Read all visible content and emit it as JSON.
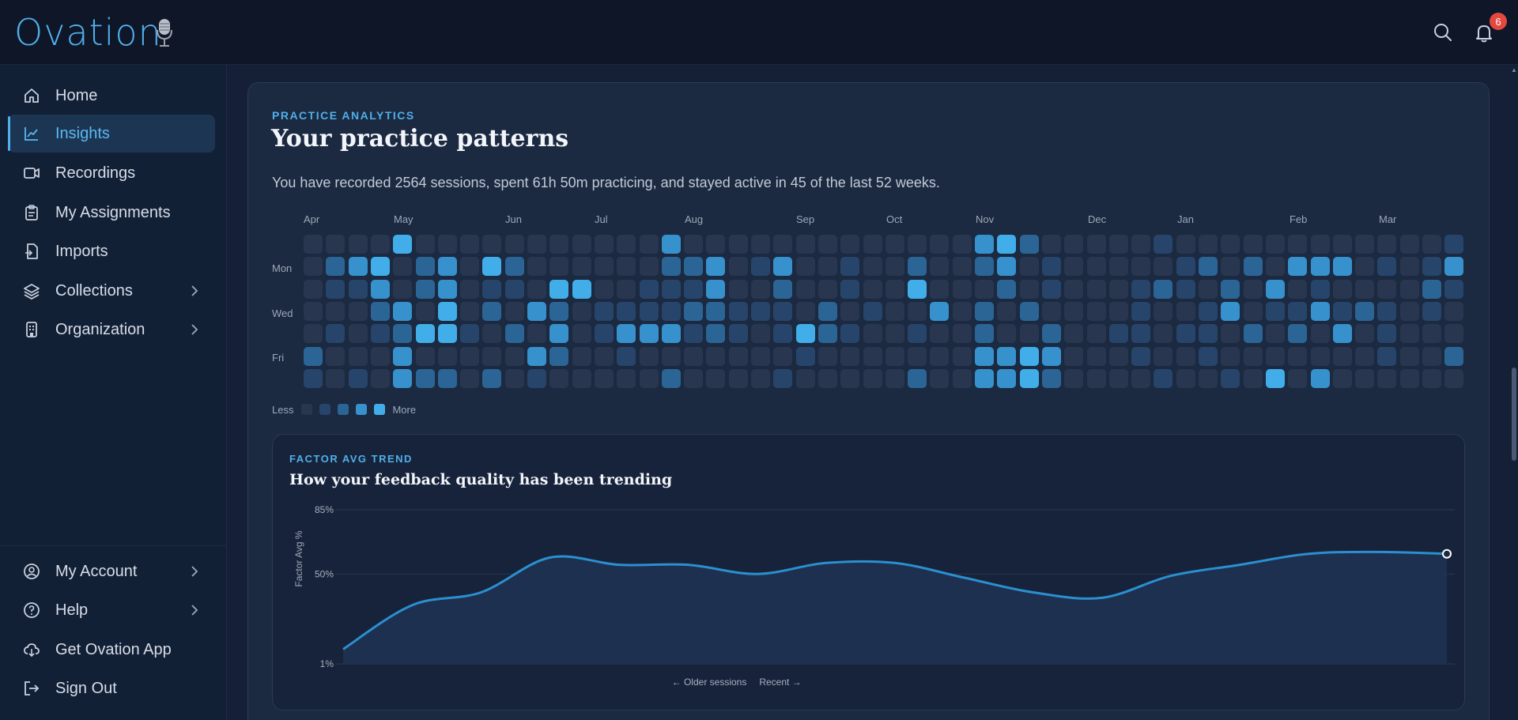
{
  "app": {
    "name": "Ovation",
    "notification_count": "6"
  },
  "sidebar": {
    "items": [
      {
        "label": "Home",
        "icon": "home-icon"
      },
      {
        "label": "Insights",
        "icon": "chart-line-icon"
      },
      {
        "label": "Recordings",
        "icon": "video-icon"
      },
      {
        "label": "My Assignments",
        "icon": "clipboard-icon"
      },
      {
        "label": "Imports",
        "icon": "file-import-icon"
      },
      {
        "label": "Collections",
        "icon": "layers-icon"
      },
      {
        "label": "Organization",
        "icon": "building-icon"
      }
    ],
    "bottom": [
      {
        "label": "My Account",
        "icon": "user-circle-icon"
      },
      {
        "label": "Help",
        "icon": "help-circle-icon"
      },
      {
        "label": "Get Ovation App",
        "icon": "cloud-download-icon"
      },
      {
        "label": "Sign Out",
        "icon": "sign-out-icon"
      }
    ]
  },
  "main": {
    "eyebrow": "PRACTICE ANALYTICS",
    "title": "Your practice patterns",
    "summary": "You have recorded 2564 sessions, spent 61h 50m practicing, and stayed active in 45 of the last 52 weeks.",
    "heatmap": {
      "months": [
        "Apr",
        "May",
        "Jun",
        "Jul",
        "Aug",
        "Sep",
        "Oct",
        "Nov",
        "Dec",
        "Jan",
        "Feb",
        "Mar"
      ],
      "day_labels": [
        "Mon",
        "Wed",
        "Fri"
      ],
      "legend_less": "Less",
      "legend_more": "More",
      "colors": [
        "#283650",
        "#27456a",
        "#2b6595",
        "#3691cc",
        "#41aee9"
      ]
    },
    "trend": {
      "eyebrow": "FACTOR AVG TREND",
      "title": "How your feedback quality has been trending"
    }
  },
  "chart_data": {
    "type": "area",
    "title": "How your feedback quality has been trending",
    "ylabel": "Factor Avg %",
    "y_ticks": [
      "85%",
      "50%",
      "1%"
    ],
    "ylim": [
      1,
      85
    ],
    "x_start_label": "← Older sessions",
    "x_end_label": "Recent →",
    "values": [
      9,
      33,
      40,
      59,
      55,
      55,
      50,
      56,
      56,
      48,
      40,
      37,
      49,
      55,
      61,
      62,
      61
    ],
    "line_color": "#2b8fd0",
    "fill_color": "#1d3150"
  }
}
